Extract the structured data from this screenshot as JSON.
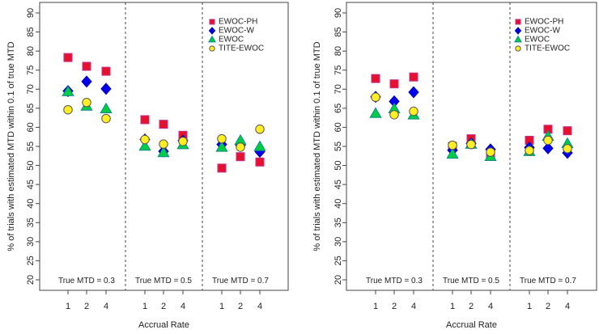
{
  "chart_data": [
    {
      "type": "scatter",
      "panel": "left",
      "ylabel": "% of trials with estimated MTD within 0.1 of true MTD",
      "xlabel": "Accrual Rate",
      "ylim": [
        20,
        90
      ],
      "yticks": [
        20,
        25,
        30,
        35,
        40,
        45,
        50,
        55,
        60,
        65,
        70,
        75,
        80,
        85,
        90
      ],
      "groups": [
        "True MTD = 0.3",
        "True MTD = 0.5",
        "True MTD = 0.7"
      ],
      "categories": [
        "1",
        "2",
        "4"
      ],
      "legend_position": "top-right",
      "series": [
        {
          "name": "EWOC-PH",
          "marker": "square",
          "color": "#e8112d",
          "values": [
            [
              78.3,
              76.0,
              74.7
            ],
            [
              62.0,
              60.8,
              57.9
            ],
            [
              49.3,
              52.3,
              50.9
            ]
          ]
        },
        {
          "name": "EWOC-W",
          "marker": "diamond",
          "color": "#0000ee",
          "values": [
            [
              69.5,
              72.0,
              70.1
            ],
            [
              56.8,
              53.7,
              56.5
            ],
            [
              55.5,
              55.3,
              53.6
            ]
          ]
        },
        {
          "name": "EWOC",
          "marker": "triangle",
          "color": "#00cc44",
          "values": [
            [
              69.3,
              65.5,
              64.8
            ],
            [
              55.0,
              53.3,
              55.4
            ],
            [
              54.7,
              56.5,
              54.9
            ]
          ]
        },
        {
          "name": "TITE-EWOC",
          "marker": "circle",
          "color": "#ffee22",
          "values": [
            [
              64.6,
              66.5,
              62.3
            ],
            [
              56.8,
              55.6,
              56.3
            ],
            [
              57.0,
              54.8,
              59.5
            ]
          ]
        }
      ]
    },
    {
      "type": "scatter",
      "panel": "right",
      "ylabel": "% of trials with estimated MTD within 0.1 of true MTD",
      "xlabel": "Accrual Rate",
      "ylim": [
        20,
        90
      ],
      "yticks": [
        20,
        25,
        30,
        35,
        40,
        45,
        50,
        55,
        60,
        65,
        70,
        75,
        80,
        85,
        90
      ],
      "groups": [
        "True MTD = 0.3",
        "True MTD = 0.5",
        "True MTD = 0.7"
      ],
      "categories": [
        "1",
        "2",
        "4"
      ],
      "legend_position": "top-right",
      "series": [
        {
          "name": "EWOC-PH",
          "marker": "square",
          "color": "#e8112d",
          "values": [
            [
              72.8,
              71.4,
              73.2
            ],
            [
              55.0,
              57.0,
              53.0
            ],
            [
              56.6,
              59.5,
              59.1
            ]
          ]
        },
        {
          "name": "EWOC-W",
          "marker": "diamond",
          "color": "#0000ee",
          "values": [
            [
              68.0,
              66.8,
              69.2
            ],
            [
              54.0,
              55.8,
              54.2
            ],
            [
              54.7,
              54.5,
              53.3
            ]
          ]
        },
        {
          "name": "EWOC",
          "marker": "triangle",
          "color": "#00cc44",
          "values": [
            [
              63.6,
              64.8,
              63.2
            ],
            [
              52.9,
              55.5,
              52.3
            ],
            [
              53.6,
              57.6,
              55.7
            ]
          ]
        },
        {
          "name": "TITE-EWOC",
          "marker": "circle",
          "color": "#ffee22",
          "values": [
            [
              67.9,
              63.3,
              64.2
            ],
            [
              55.3,
              55.5,
              53.5
            ],
            [
              53.9,
              56.6,
              54.4
            ]
          ]
        }
      ]
    }
  ]
}
